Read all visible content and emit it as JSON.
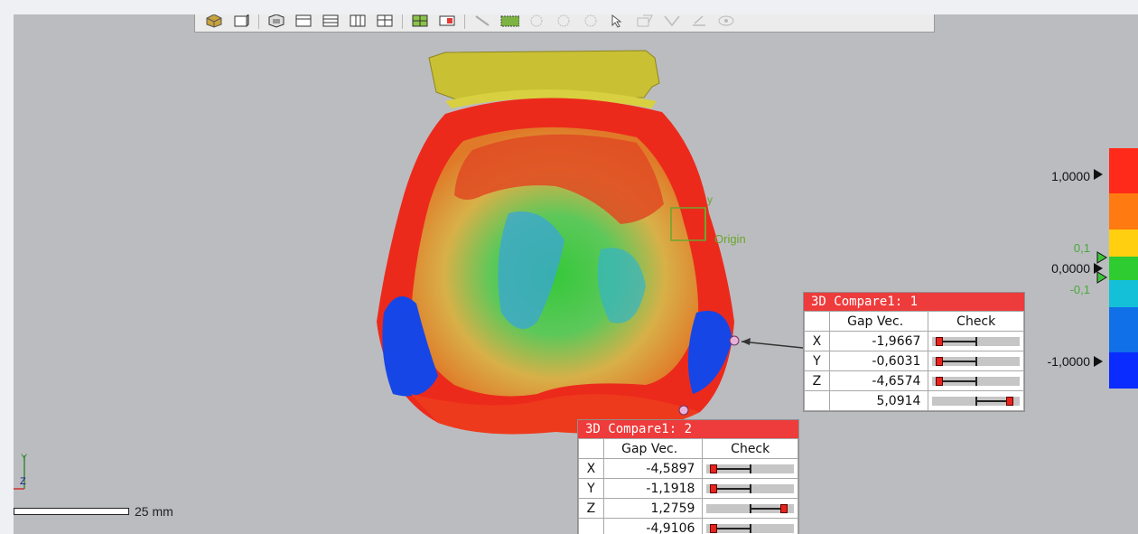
{
  "toolbar": {
    "icons": [
      "view-cube-icon",
      "box-view-icon",
      "shading-icon",
      "layout-single-icon",
      "layout-horizontal-icon",
      "layout-vertical-icon",
      "layout-quad-icon",
      "layout-grid-icon",
      "layout-split-icon",
      "select-line-icon",
      "select-rectangle-icon",
      "select-polygon-icon",
      "select-circle-icon",
      "select-lasso-icon",
      "select-pointer-icon",
      "select-visible-icon",
      "select-brush-icon",
      "select-paint-icon",
      "visibility-icon"
    ]
  },
  "viewport": {
    "origin_label": "Origin",
    "axis_y_label": "y",
    "scale_label": "25 mm"
  },
  "compare_1": {
    "title": "3D Compare1: 1",
    "col_gap": "Gap Vec.",
    "col_check": "Check",
    "rows": [
      {
        "axis": "X",
        "value": "-1,9667",
        "level": 0.05
      },
      {
        "axis": "Y",
        "value": "-0,6031",
        "level": 0.05
      },
      {
        "axis": "Z",
        "value": "-4,6574",
        "level": 0.05
      },
      {
        "axis": "",
        "value": "5,0914",
        "level": 0.95
      }
    ]
  },
  "compare_2": {
    "title": "3D Compare1: 2",
    "col_gap": "Gap Vec.",
    "col_check": "Check",
    "rows": [
      {
        "axis": "X",
        "value": "-4,5897",
        "level": 0.05
      },
      {
        "axis": "Y",
        "value": "-1,1918",
        "level": 0.05
      },
      {
        "axis": "Z",
        "value": "1,2759",
        "level": 0.95
      },
      {
        "axis": "",
        "value": "-4,9106",
        "level": 0.05
      }
    ]
  },
  "legend": {
    "max": "1,0000",
    "upper_tol": "0,1",
    "zero": "0,0000",
    "lower_tol": "-0,1",
    "min": "-1,0000",
    "colors": [
      "#ff2a1a",
      "#ff7a10",
      "#ffcf10",
      "#2ecc30",
      "#14c0d8",
      "#1070e8",
      "#0a2cff"
    ]
  }
}
